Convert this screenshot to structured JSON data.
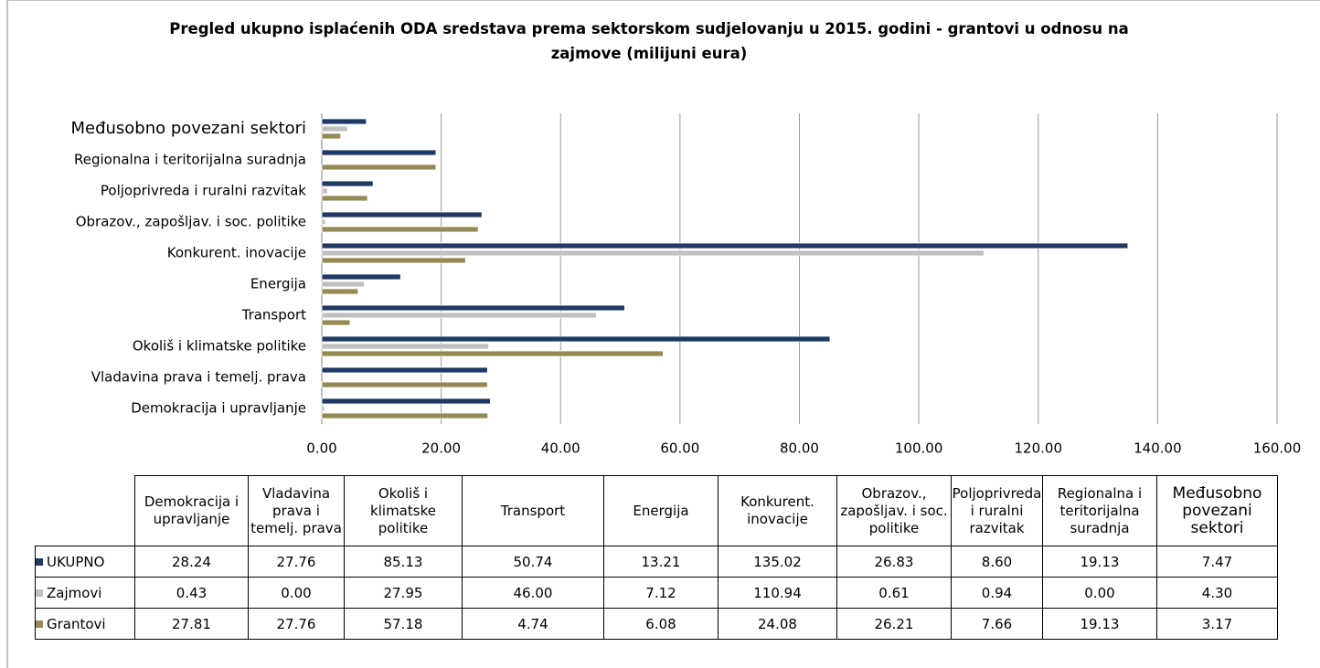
{
  "chart_data": {
    "type": "bar",
    "orientation": "horizontal",
    "title": "Pregled ukupno isplaćenih ODA sredstava  prema sektorskom sudjelovanju u 2015. godini - grantovi u odnosu na zajmove (milijuni eura)",
    "categories": [
      "Demokracija i upravljanje",
      "Vladavina prava i temelj. prava",
      "Okoliš i klimatske politike",
      "Transport",
      "Energija",
      "Konkurent. inovacije",
      "Obrazov., zapošljav. i soc. politike",
      "Poljoprivreda i ruralni razvitak",
      "Regionalna i teritorijalna suradnja",
      "Međusobno povezani sektori"
    ],
    "series": [
      {
        "name": "UKUPNO",
        "color": "#1f3864",
        "values": [
          28.24,
          27.76,
          85.13,
          50.74,
          13.21,
          135.02,
          26.83,
          8.6,
          19.13,
          7.47
        ],
        "value_labels": [
          "28.24",
          "27.76",
          "85.13",
          "50.74",
          "13.21",
          "135.02",
          "26.83",
          "8.60",
          "19.13",
          "7.47"
        ]
      },
      {
        "name": "Zajmovi",
        "color": "#c0c0c0",
        "values": [
          0.43,
          0,
          27.95,
          46,
          7.12,
          110.94,
          0.61,
          0.94,
          0,
          4.3
        ],
        "value_labels": [
          "0.43",
          "0.00",
          "27.95",
          "46.00",
          "7.12",
          "110.94",
          "0.61",
          "0.94",
          "0.00",
          "4.30"
        ]
      },
      {
        "name": "Grantovi",
        "color": "#948a54",
        "values": [
          27.81,
          27.76,
          57.18,
          4.74,
          6.08,
          24.08,
          26.21,
          7.66,
          19.13,
          3.17
        ],
        "value_labels": [
          "27.81",
          "27.76",
          "57.18",
          "4.74",
          "6.08",
          "24.08",
          "26.21",
          "7.66",
          "19.13",
          "3.17"
        ]
      }
    ],
    "xlim": [
      0,
      160
    ],
    "xticks": [
      {
        "value": 0,
        "label": "0.00"
      },
      {
        "value": 20,
        "label": "20.00"
      },
      {
        "value": 40,
        "label": "40.00"
      },
      {
        "value": 60,
        "label": "60.00"
      },
      {
        "value": 80,
        "label": "80.00"
      },
      {
        "value": 100,
        "label": "100.00"
      },
      {
        "value": 120,
        "label": "120.00"
      },
      {
        "value": 140,
        "label": "140.00"
      },
      {
        "value": 160,
        "label": "160.00"
      }
    ],
    "grid": true
  }
}
